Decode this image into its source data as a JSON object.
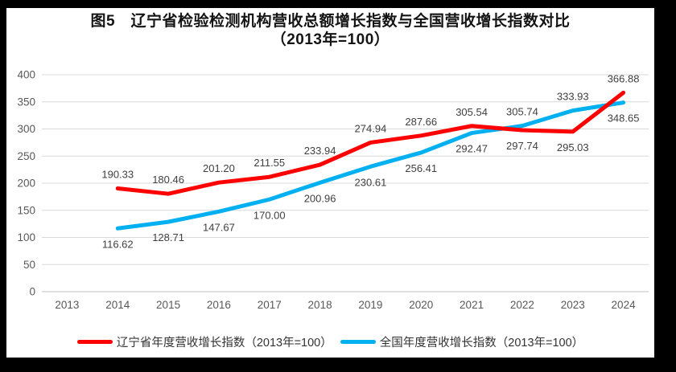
{
  "title": {
    "line1": "图5　辽宁省检验检测机构营收总额增长指数与全国营收增长指数对比",
    "line2": "（2013年=100）"
  },
  "colors": {
    "liaoning_line": "#FE0000",
    "national_line": "#00B0F0",
    "gridline": "#D9D9D9",
    "axis_line": "#BFBFBF",
    "axis_text": "#595959",
    "data_label_text": "#3F3F3F",
    "background": "#FFFFFF",
    "frame_border": "#000000"
  },
  "chart_data": {
    "type": "line",
    "title": "图5　辽宁省检验检测机构营收总额增长指数与全国营收增长指数对比（2013年=100）",
    "categories": [
      "2013",
      "2014",
      "2015",
      "2016",
      "2017",
      "2018",
      "2019",
      "2020",
      "2021",
      "2022",
      "2023",
      "2024"
    ],
    "ylim": [
      0,
      400
    ],
    "y_ticks": [
      0,
      50,
      100,
      150,
      200,
      250,
      300,
      350,
      400
    ],
    "grid": true,
    "legend_position": "bottom",
    "series": [
      {
        "name": "辽宁省年度营收增长指数（2013年=100）",
        "key": "liaoning",
        "color": "#FE0000",
        "start_index": 1,
        "values": [
          190.33,
          180.46,
          201.2,
          211.55,
          233.94,
          274.94,
          287.66,
          305.54,
          297.74,
          295.03,
          366.88
        ],
        "label_positions": [
          "above",
          "above",
          "above",
          "above",
          "above",
          "above",
          "above",
          "above",
          "below",
          "below",
          "above"
        ]
      },
      {
        "name": "全国年度营收增长指数（2013年=100）",
        "key": "national",
        "color": "#00B0F0",
        "start_index": 1,
        "values": [
          116.62,
          128.71,
          147.67,
          170.0,
          200.96,
          230.61,
          256.41,
          292.47,
          305.74,
          333.93,
          348.65
        ],
        "label_positions": [
          "below",
          "below",
          "below",
          "below",
          "below",
          "below",
          "below",
          "below",
          "above",
          "above",
          "below"
        ]
      }
    ]
  }
}
